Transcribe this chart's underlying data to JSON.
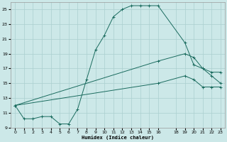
{
  "xlabel": "Humidex (Indice chaleur)",
  "bg_color": "#cce8e8",
  "grid_color": "#aacfcf",
  "line_color": "#1a6b5e",
  "ylim": [
    9,
    26
  ],
  "xlim": [
    -0.5,
    23.5
  ],
  "yticks": [
    9,
    11,
    13,
    15,
    17,
    19,
    21,
    23,
    25
  ],
  "xticks": [
    0,
    1,
    2,
    3,
    4,
    5,
    6,
    7,
    8,
    9,
    10,
    11,
    12,
    13,
    14,
    15,
    16,
    18,
    19,
    20,
    21,
    22,
    23
  ],
  "line1_x": [
    0,
    1,
    2,
    3,
    4,
    5,
    6,
    7,
    8,
    9,
    10,
    11,
    12,
    13,
    14,
    15,
    16,
    19,
    20,
    21,
    22,
    23
  ],
  "line1_y": [
    12,
    10.2,
    10.2,
    10.5,
    10.5,
    9.5,
    9.5,
    11.5,
    15.5,
    19.5,
    21.5,
    24,
    25,
    25.5,
    25.5,
    25.5,
    25.5,
    20.5,
    17.5,
    17,
    16,
    15
  ],
  "line2_x": [
    0,
    16,
    19,
    20,
    21,
    22,
    23
  ],
  "line2_y": [
    12,
    18,
    19,
    18.5,
    17,
    16.5,
    16.5
  ],
  "line3_x": [
    0,
    16,
    19,
    20,
    21,
    22,
    23
  ],
  "line3_y": [
    12,
    15,
    16,
    15.5,
    14.5,
    14.5,
    14.5
  ]
}
